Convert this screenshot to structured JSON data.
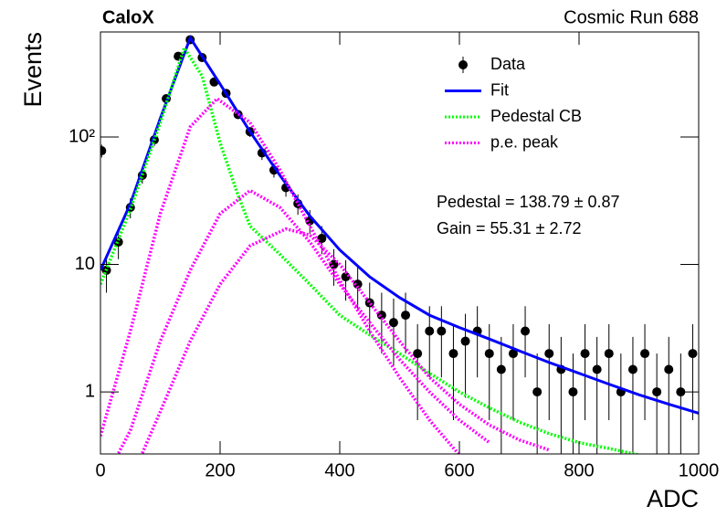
{
  "chart_data": {
    "type": "scatter",
    "title": "CaloX",
    "subtitle": "Cosmic Run 688",
    "x_label": "ADC",
    "y_label": "Events",
    "log_y": true,
    "xlim": [
      0,
      1000
    ],
    "ylim": [
      0.326,
      667
    ],
    "xticks": [
      0,
      200,
      400,
      600,
      800,
      1000
    ],
    "yticks": [
      1,
      10,
      {
        "value": 100,
        "label": "10²"
      }
    ],
    "legend": "upper right",
    "annotations": [
      "Pedestal = 138.79 ± 0.87",
      "Gain = 55.31 ± 2.72"
    ],
    "series": [
      {
        "name": "Data",
        "style": "marker",
        "color": "#000000",
        "x": [
          2,
          10,
          30,
          50,
          70,
          90,
          110,
          130,
          150,
          170,
          190,
          210,
          230,
          250,
          270,
          290,
          310,
          330,
          350,
          370,
          390,
          410,
          430,
          450,
          470,
          490,
          510,
          530,
          550,
          570,
          590,
          610,
          630,
          650,
          670,
          690,
          710,
          730,
          750,
          770,
          790,
          810,
          830,
          850,
          870,
          890,
          910,
          930,
          950,
          970,
          990
        ],
        "values": [
          78,
          9,
          15,
          28,
          50,
          95,
          200,
          430,
          580,
          420,
          270,
          220,
          150,
          110,
          75,
          55,
          40,
          30,
          22,
          16,
          10,
          8,
          7,
          5,
          4,
          3.5,
          4,
          2,
          3,
          3,
          2,
          2.5,
          3,
          2,
          1.5,
          2,
          3,
          1,
          2,
          1.5,
          1,
          2,
          1.5,
          2,
          1,
          1.5,
          2,
          1,
          1.5,
          1,
          2
        ],
        "errors": [
          9,
          3,
          4,
          5,
          7,
          10,
          14,
          21,
          24,
          20,
          16,
          15,
          12,
          10,
          9,
          7,
          6,
          5.5,
          4.7,
          4,
          3.2,
          2.8,
          2.6,
          2.2,
          2,
          1.9,
          2,
          1.4,
          1.7,
          1.7,
          1.4,
          1.6,
          1.7,
          1.4,
          1.2,
          1.4,
          1.7,
          1,
          1.4,
          1.2,
          1,
          1.4,
          1.2,
          1.4,
          1,
          1.2,
          1.4,
          1,
          1.2,
          1,
          1.4
        ]
      },
      {
        "name": "Fit",
        "style": "solid",
        "color": "#0000ff",
        "x": [
          0,
          50,
          100,
          150,
          200,
          250,
          300,
          350,
          400,
          450,
          500,
          550,
          600,
          650,
          700,
          750,
          800,
          850,
          900,
          950,
          1000
        ],
        "values": [
          9,
          30,
          140,
          600,
          260,
          110,
          50,
          24,
          13,
          8,
          5.5,
          4,
          3.2,
          2.6,
          2.1,
          1.7,
          1.4,
          1.15,
          0.95,
          0.8,
          0.68
        ]
      },
      {
        "name": "Pedestal CB",
        "style": "dotted",
        "color": "#00ff00",
        "x": [
          0,
          50,
          100,
          140,
          170,
          200,
          230,
          250,
          300,
          350,
          400,
          450,
          500,
          550,
          600,
          650,
          700,
          750,
          800,
          850,
          900
        ],
        "values": [
          7,
          27,
          130,
          500,
          300,
          90,
          35,
          20,
          12,
          7,
          4,
          2.8,
          2,
          1.4,
          1,
          0.75,
          0.58,
          0.47,
          0.4,
          0.36,
          0.32
        ]
      },
      {
        "name": "p.e. peak",
        "style": "dotted",
        "color": "#ff00ff",
        "curves": [
          {
            "x": [
              0,
              50,
              100,
              150,
              195,
              250,
              300,
              350,
              400,
              450,
              500,
              550,
              600
            ],
            "values": [
              0.45,
              3,
              25,
              120,
              200,
              130,
              55,
              20,
              7.5,
              3,
              1.3,
              0.6,
              0.32
            ]
          },
          {
            "x": [
              30,
              50,
              100,
              150,
              200,
              250,
              300,
              350,
              400,
              450,
              500,
              550,
              600,
              650
            ],
            "values": [
              0.33,
              0.5,
              2.5,
              9,
              25,
              38,
              28,
              15,
              7,
              3.5,
              1.8,
              1,
              0.6,
              0.4
            ]
          },
          {
            "x": [
              70,
              100,
              150,
              200,
              250,
              310,
              350,
              400,
              450,
              500,
              550,
              600,
              650,
              700,
              750
            ],
            "values": [
              0.33,
              0.7,
              2.5,
              7,
              14,
              19,
              17,
              10,
              5,
              2.5,
              1.3,
              0.8,
              0.55,
              0.42,
              0.35
            ]
          }
        ]
      }
    ]
  }
}
